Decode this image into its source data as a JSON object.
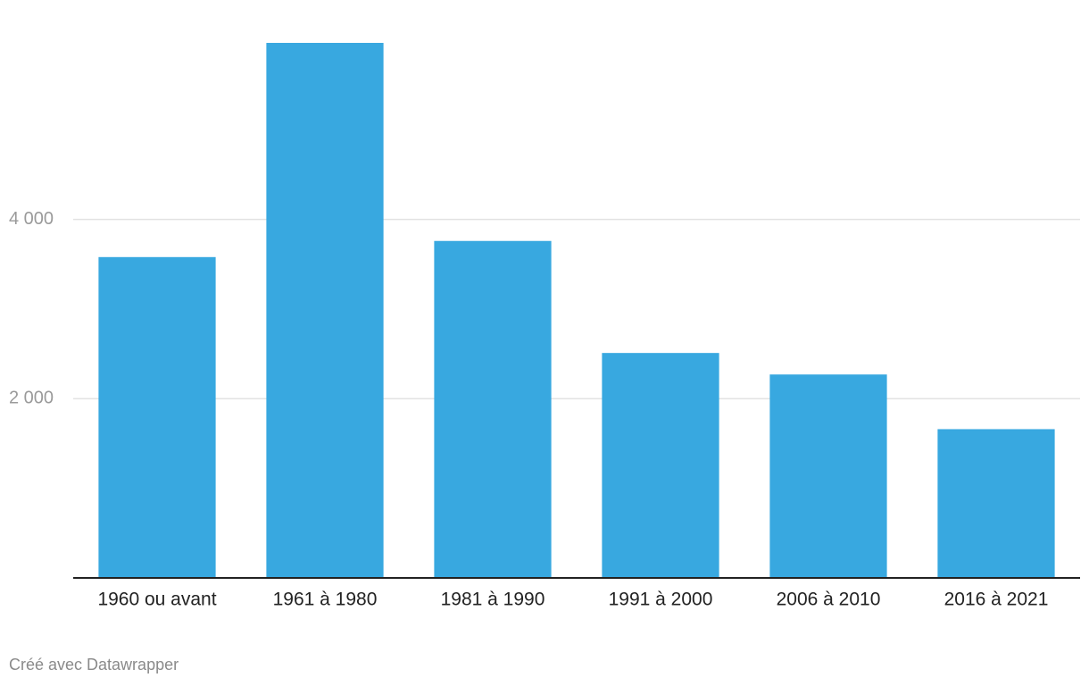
{
  "chart_data": {
    "type": "bar",
    "categories": [
      "1960 ou avant",
      "1961 à 1980",
      "1981 à 1990",
      "1991 à 2000",
      "2006 à 2010",
      "2016 à 2021"
    ],
    "values": [
      3580,
      5970,
      3760,
      2510,
      2270,
      1660
    ],
    "color": "#38a8e0",
    "ylim": [
      0,
      6000
    ],
    "yticks": [
      {
        "value": 2000,
        "label": "2 000"
      },
      {
        "value": 4000,
        "label": "4 000"
      }
    ],
    "grid": true,
    "credit": "Créé avec Datawrapper"
  }
}
